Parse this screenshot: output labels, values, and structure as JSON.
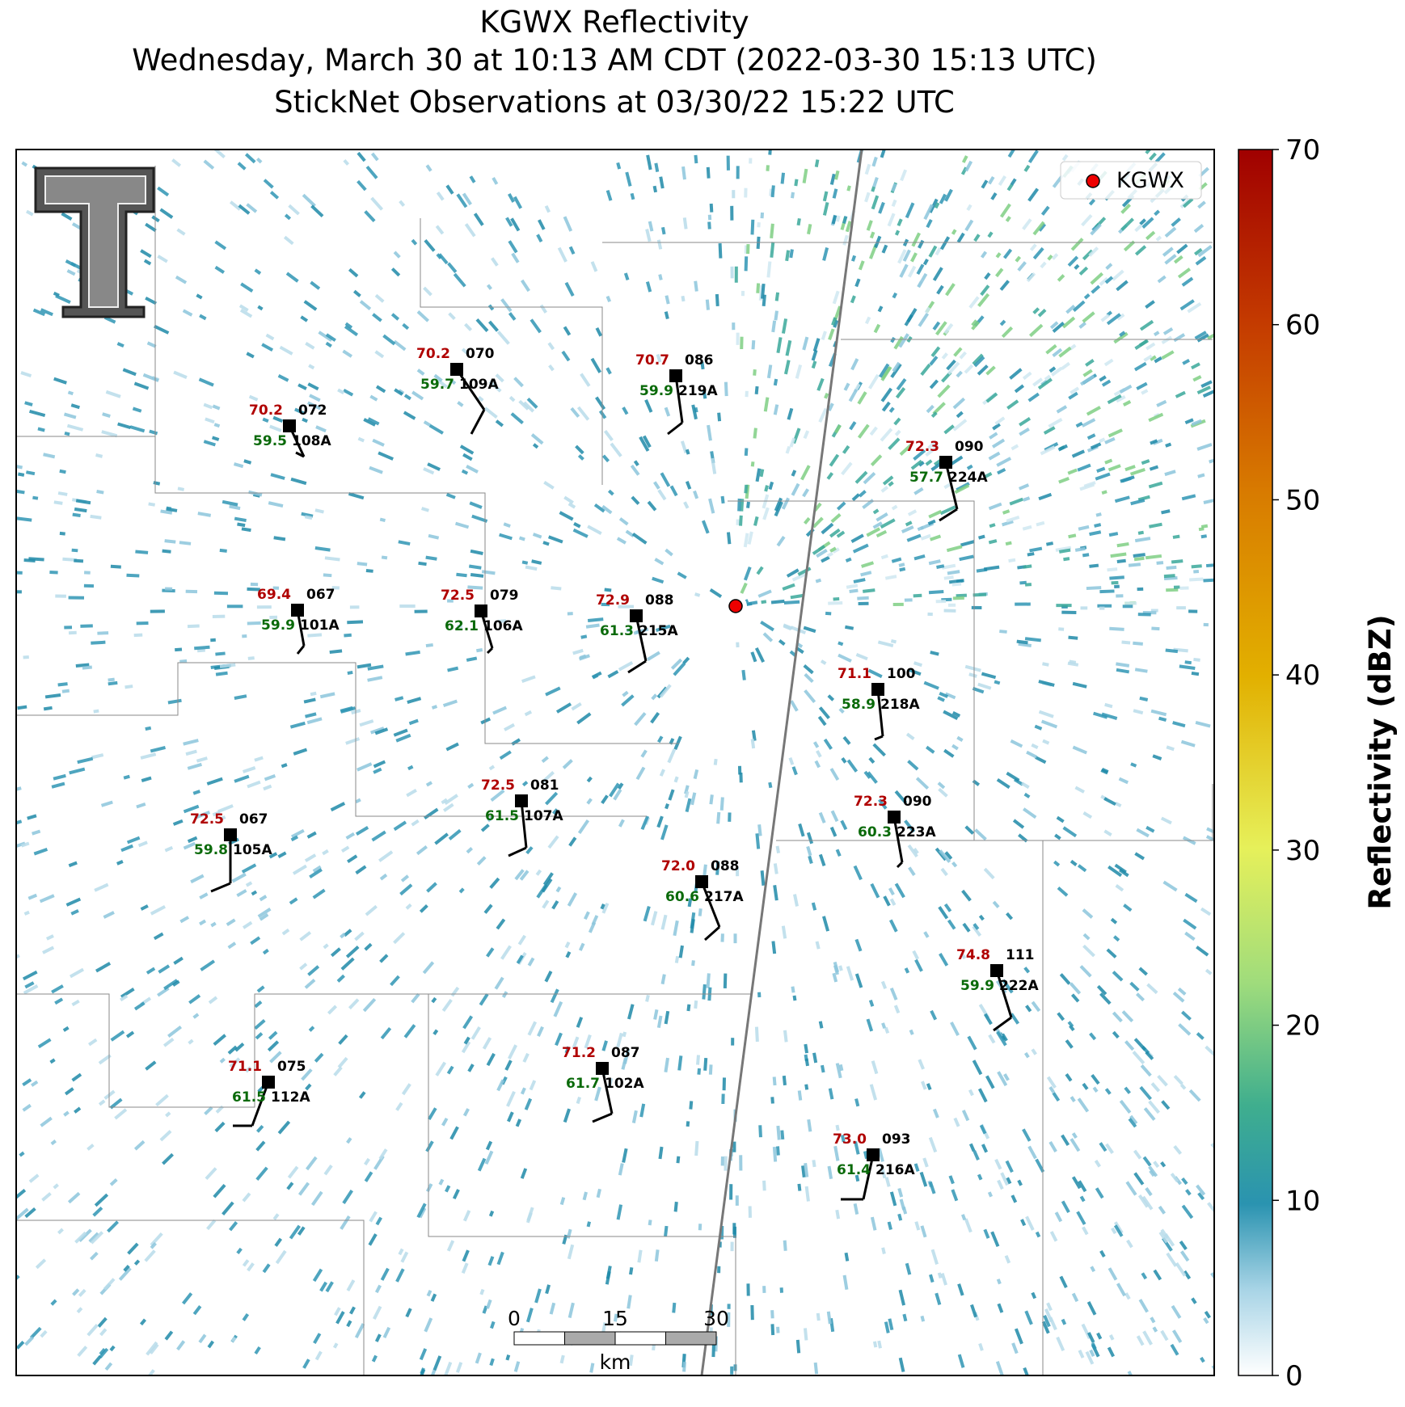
{
  "title_lines": [
    "KGWX Reflectivity",
    "Wednesday, March 30 at 10:13 AM CDT (2022-03-30 15:13 UTC)",
    "StickNet Observations at 03/30/22 15:22 UTC"
  ],
  "legend": {
    "label": "KGWX"
  },
  "colorbar": {
    "label": "Reflectivity (dBZ)",
    "ticks": [
      0,
      10,
      20,
      30,
      40,
      50,
      60,
      70
    ]
  },
  "scale_bar": {
    "ticks": [
      "0",
      "15",
      "30"
    ],
    "unit": "km"
  },
  "stations": [
    {
      "temperature": "70.2",
      "dewpoint": "59.5",
      "wind": "072",
      "id": "108A"
    },
    {
      "temperature": "70.2",
      "dewpoint": "59.7",
      "wind": "070",
      "id": "109A"
    },
    {
      "temperature": "70.7",
      "dewpoint": "59.9",
      "wind": "086",
      "id": "219A"
    },
    {
      "temperature": "72.3",
      "dewpoint": "57.7",
      "wind": "090",
      "id": "224A"
    },
    {
      "temperature": "69.4",
      "dewpoint": "59.9",
      "wind": "067",
      "id": "101A"
    },
    {
      "temperature": "72.5",
      "dewpoint": "62.1",
      "wind": "079",
      "id": "106A"
    },
    {
      "temperature": "72.9",
      "dewpoint": "61.3",
      "wind": "088",
      "id": "215A"
    },
    {
      "temperature": "71.1",
      "dewpoint": "58.9",
      "wind": "100",
      "id": "218A"
    },
    {
      "temperature": "72.5",
      "dewpoint": "61.5",
      "wind": "081",
      "id": "107A"
    },
    {
      "temperature": "72.5",
      "dewpoint": "59.8",
      "wind": "067",
      "id": "105A"
    },
    {
      "temperature": "72.3",
      "dewpoint": "60.3",
      "wind": "090",
      "id": "223A"
    },
    {
      "temperature": "72.0",
      "dewpoint": "60.6",
      "wind": "088",
      "id": "217A"
    },
    {
      "temperature": "74.8",
      "dewpoint": "59.9",
      "wind": "111",
      "id": "222A"
    },
    {
      "temperature": "71.1",
      "dewpoint": "61.5",
      "wind": "075",
      "id": "112A"
    },
    {
      "temperature": "71.2",
      "dewpoint": "61.7",
      "wind": "087",
      "id": "102A"
    },
    {
      "temperature": "73.0",
      "dewpoint": "61.4",
      "wind": "093",
      "id": "216A"
    }
  ]
}
